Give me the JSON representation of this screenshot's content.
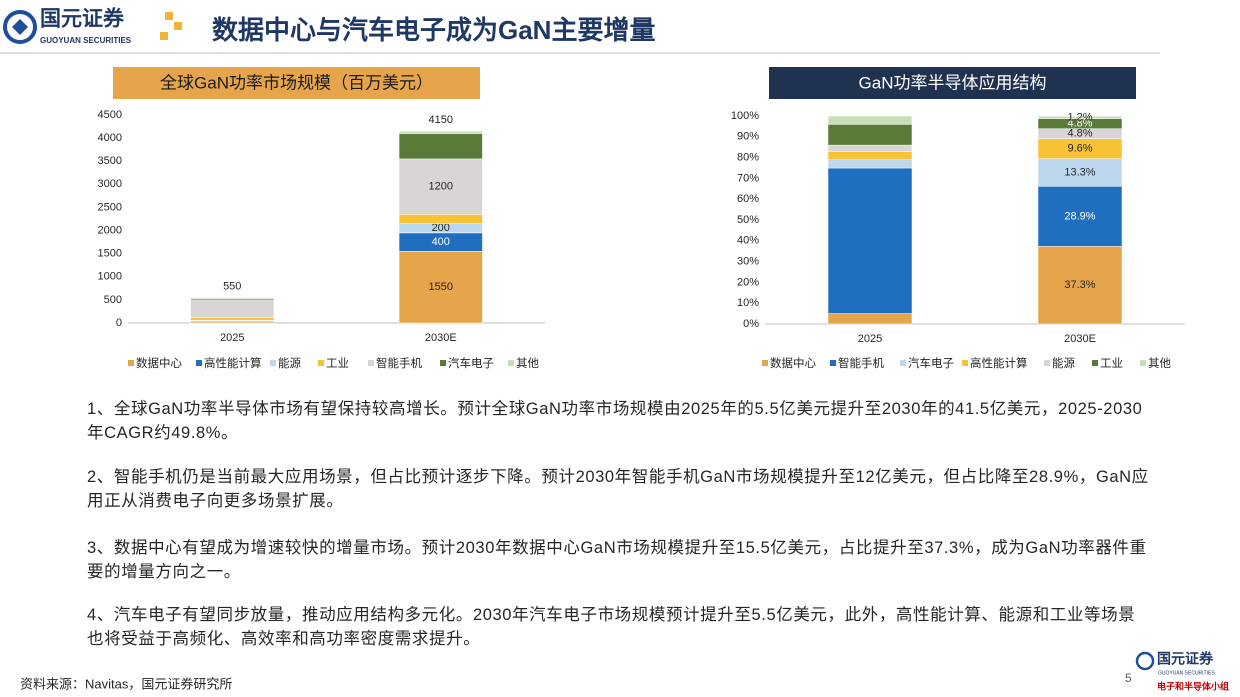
{
  "header": {
    "logo_name": "国元证券",
    "logo_sub": "GUOYUAN SECURITIES",
    "title": "数据中心与汽车电子成为GaN主要增量"
  },
  "chart_data": [
    {
      "type": "bar",
      "stacked": true,
      "title": "全球GaN功率市场规模（百万美元）",
      "title_color": "#E6A54A",
      "categories": [
        "2025",
        "2030E"
      ],
      "series": [
        {
          "name": "数据中心",
          "color": "#E6A54A",
          "values": [
            25,
            1550
          ],
          "value_labels": [
            null,
            "1550"
          ]
        },
        {
          "name": "高性能计算",
          "color": "#1F6EBF",
          "values": [
            20,
            400
          ],
          "value_labels": [
            null,
            "400"
          ]
        },
        {
          "name": "能源",
          "color": "#BDD7EE",
          "values": [
            15,
            200
          ],
          "value_labels": [
            null,
            "200"
          ]
        },
        {
          "name": "工业",
          "color": "#F8C136",
          "values": [
            55,
            200
          ],
          "value_labels": [
            null,
            null
          ]
        },
        {
          "name": "智能手机",
          "color": "#D9D5D6",
          "values": [
            385,
            1200
          ],
          "value_labels": [
            null,
            "1200"
          ]
        },
        {
          "name": "汽车电子",
          "color": "#5B7A3A",
          "values": [
            25,
            550
          ],
          "value_labels": [
            null,
            null
          ]
        },
        {
          "name": "其他",
          "color": "#C5E0B4",
          "values": [
            25,
            50
          ],
          "value_labels": [
            null,
            null
          ]
        }
      ],
      "totals": [
        550,
        4150
      ],
      "ylim": [
        0,
        4500
      ],
      "yticks": [
        0,
        500,
        1000,
        1500,
        2000,
        2500,
        3000,
        3500,
        4000,
        4500
      ],
      "legend": "bottom"
    },
    {
      "type": "bar",
      "stacked": true,
      "title": "GaN功率半导体应用结构",
      "title_color": "#1F3250",
      "categories": [
        "2025",
        "2030E"
      ],
      "series": [
        {
          "name": "数据中心",
          "color": "#E6A54A",
          "values": [
            5,
            37.3
          ],
          "value_labels": [
            null,
            "37.3%"
          ]
        },
        {
          "name": "智能手机",
          "color": "#1F6EBF",
          "values": [
            70,
            28.9
          ],
          "value_labels": [
            null,
            "28.9%"
          ]
        },
        {
          "name": "汽车电子",
          "color": "#BDD7EE",
          "values": [
            4,
            13.3
          ],
          "value_labels": [
            null,
            "13.3%"
          ]
        },
        {
          "name": "高性能计算",
          "color": "#F8C136",
          "values": [
            4,
            9.6
          ],
          "value_labels": [
            null,
            "9.6%"
          ]
        },
        {
          "name": "能源",
          "color": "#D9D5D6",
          "values": [
            3,
            4.8
          ],
          "value_labels": [
            null,
            "4.8%"
          ]
        },
        {
          "name": "工业",
          "color": "#5B7A3A",
          "values": [
            10,
            4.8
          ],
          "value_labels": [
            null,
            "4.8%"
          ]
        },
        {
          "name": "其他",
          "color": "#C5E0B4",
          "values": [
            4,
            1.2
          ],
          "value_labels": [
            null,
            "1.2%"
          ]
        }
      ],
      "ylim": [
        0,
        100
      ],
      "yticks": [
        {
          "value": 0,
          "label": "0%"
        },
        {
          "value": 10,
          "label": "10%"
        },
        {
          "value": 20,
          "label": "20%"
        },
        {
          "value": 30,
          "label": "30%"
        },
        {
          "value": 40,
          "label": "40%"
        },
        {
          "value": 50,
          "label": "50%"
        },
        {
          "value": 60,
          "label": "60%"
        },
        {
          "value": 70,
          "label": "70%"
        },
        {
          "value": 80,
          "label": "80%"
        },
        {
          "value": 90,
          "label": "90%"
        },
        {
          "value": 100,
          "label": "100%"
        }
      ],
      "legend": "bottom"
    }
  ],
  "paragraphs": [
    "1、全球GaN功率半导体市场有望保持较高增长。预计全球GaN功率市场规模由2025年的5.5亿美元提升至2030年的41.5亿美元，2025-2030年CAGR约49.8%。",
    "2、智能手机仍是当前最大应用场景，但占比预计逐步下降。预计2030年智能手机GaN市场规模提升至12亿美元，但占比降至28.9%，GaN应用正从消费电子向更多场景扩展。",
    "3、数据中心有望成为增速较快的增量市场。预计2030年数据中心GaN市场规模提升至15.5亿美元，占比提升至37.3%，成为GaN功率器件重要的增量方向之一。",
    "4、汽车电子有望同步放量，推动应用结构多元化。2030年汽车电子市场规模预计提升至5.5亿美元，此外，高性能计算、能源和工业等场景也将受益于高频化、高效率和高功率密度需求提升。"
  ],
  "source": "资料来源：Navitas，国元证券研究所",
  "page_number": "5",
  "footer_logo": {
    "name": "国元证券",
    "sub": "GUOYUAN SECURITIES",
    "team": "电子和半导体小组"
  }
}
